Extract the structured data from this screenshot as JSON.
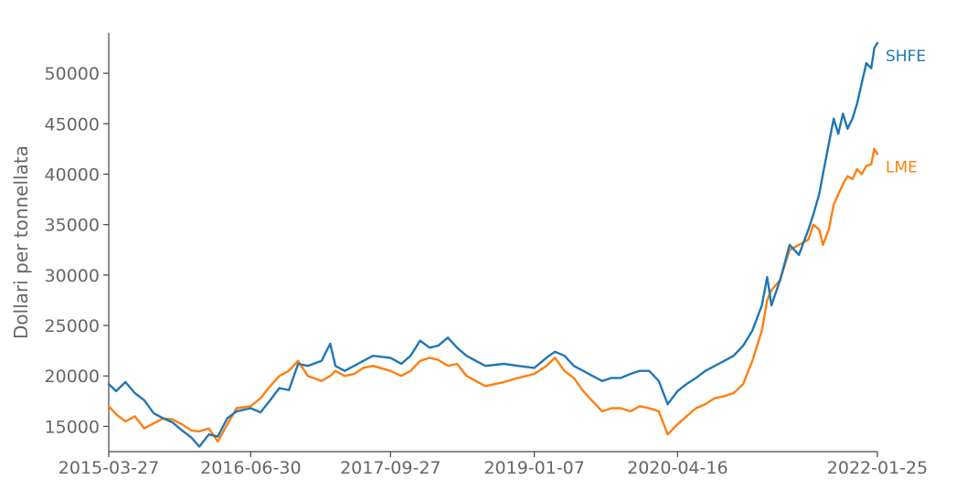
{
  "chart_data": {
    "type": "line",
    "title": "",
    "xlabel": "",
    "ylabel": "Dollari per tonnellata",
    "x_ticks": [
      "2015-03-27",
      "2016-06-30",
      "2017-09-27",
      "2019-01-07",
      "2020-04-16",
      "2022-01-25"
    ],
    "x_range": [
      "2015-03-27",
      "2022-01-25"
    ],
    "y_ticks": [
      15000,
      20000,
      25000,
      30000,
      35000,
      40000,
      45000,
      50000
    ],
    "ylim": [
      12500,
      54000
    ],
    "grid": false,
    "legend": "direct-labels-right",
    "series": [
      {
        "name": "SHFE",
        "color": "#1f77b4",
        "points": [
          [
            "2015-03-27",
            19200
          ],
          [
            "2015-04-20",
            18500
          ],
          [
            "2015-05-20",
            19400
          ],
          [
            "2015-06-20",
            18300
          ],
          [
            "2015-07-20",
            17600
          ],
          [
            "2015-08-20",
            16300
          ],
          [
            "2015-09-20",
            15800
          ],
          [
            "2015-10-20",
            15400
          ],
          [
            "2015-11-20",
            14600
          ],
          [
            "2015-12-20",
            13900
          ],
          [
            "2016-01-15",
            13000
          ],
          [
            "2016-02-15",
            14200
          ],
          [
            "2016-03-15",
            14000
          ],
          [
            "2016-04-15",
            15800
          ],
          [
            "2016-05-15",
            16500
          ],
          [
            "2016-06-30",
            16800
          ],
          [
            "2016-08-01",
            16400
          ],
          [
            "2016-09-01",
            17600
          ],
          [
            "2016-10-01",
            18800
          ],
          [
            "2016-11-01",
            18600
          ],
          [
            "2016-12-01",
            21200
          ],
          [
            "2017-01-01",
            21000
          ],
          [
            "2017-02-15",
            21500
          ],
          [
            "2017-03-15",
            23200
          ],
          [
            "2017-04-01",
            21000
          ],
          [
            "2017-05-01",
            20500
          ],
          [
            "2017-06-01",
            21000
          ],
          [
            "2017-07-01",
            21500
          ],
          [
            "2017-08-01",
            22000
          ],
          [
            "2017-09-27",
            21800
          ],
          [
            "2017-11-01",
            21200
          ],
          [
            "2017-12-01",
            22000
          ],
          [
            "2018-01-01",
            23500
          ],
          [
            "2018-02-01",
            22800
          ],
          [
            "2018-03-01",
            23000
          ],
          [
            "2018-04-01",
            23800
          ],
          [
            "2018-05-01",
            22800
          ],
          [
            "2018-06-01",
            22000
          ],
          [
            "2018-07-01",
            21500
          ],
          [
            "2018-08-01",
            21000
          ],
          [
            "2018-10-01",
            21200
          ],
          [
            "2018-11-15",
            21000
          ],
          [
            "2019-01-07",
            20800
          ],
          [
            "2019-02-15",
            21800
          ],
          [
            "2019-03-15",
            22400
          ],
          [
            "2019-04-15",
            22000
          ],
          [
            "2019-05-15",
            21000
          ],
          [
            "2019-06-15",
            20500
          ],
          [
            "2019-07-15",
            20000
          ],
          [
            "2019-08-15",
            19500
          ],
          [
            "2019-09-15",
            19800
          ],
          [
            "2019-10-15",
            19800
          ],
          [
            "2019-11-15",
            20200
          ],
          [
            "2019-12-15",
            20500
          ],
          [
            "2020-01-15",
            20500
          ],
          [
            "2020-02-15",
            19500
          ],
          [
            "2020-03-15",
            17200
          ],
          [
            "2020-04-16",
            18500
          ],
          [
            "2020-05-15",
            19200
          ],
          [
            "2020-06-15",
            19800
          ],
          [
            "2020-07-15",
            20500
          ],
          [
            "2020-08-15",
            21000
          ],
          [
            "2020-09-15",
            21500
          ],
          [
            "2020-10-15",
            22000
          ],
          [
            "2020-11-15",
            23000
          ],
          [
            "2020-12-15",
            24500
          ],
          [
            "2021-01-15",
            27000
          ],
          [
            "2021-02-01",
            29800
          ],
          [
            "2021-02-15",
            27000
          ],
          [
            "2021-03-15",
            29500
          ],
          [
            "2021-04-15",
            33000
          ],
          [
            "2021-05-15",
            32000
          ],
          [
            "2021-06-15",
            34500
          ],
          [
            "2021-07-01",
            36000
          ],
          [
            "2021-07-20",
            38000
          ],
          [
            "2021-08-01",
            40000
          ],
          [
            "2021-08-20",
            43000
          ],
          [
            "2021-09-05",
            45500
          ],
          [
            "2021-09-20",
            44000
          ],
          [
            "2021-10-05",
            46000
          ],
          [
            "2021-10-20",
            44500
          ],
          [
            "2021-11-05",
            45500
          ],
          [
            "2021-11-20",
            47000
          ],
          [
            "2021-12-05",
            49000
          ],
          [
            "2021-12-20",
            51000
          ],
          [
            "2022-01-05",
            50500
          ],
          [
            "2022-01-15",
            52500
          ],
          [
            "2022-01-25",
            53000
          ]
        ]
      },
      {
        "name": "LME",
        "color": "#ff7f0e",
        "points": [
          [
            "2015-03-27",
            17000
          ],
          [
            "2015-04-20",
            16200
          ],
          [
            "2015-05-20",
            15500
          ],
          [
            "2015-06-20",
            16000
          ],
          [
            "2015-07-20",
            14800
          ],
          [
            "2015-08-20",
            15300
          ],
          [
            "2015-09-20",
            15800
          ],
          [
            "2015-10-20",
            15700
          ],
          [
            "2015-11-20",
            15200
          ],
          [
            "2015-12-20",
            14600
          ],
          [
            "2016-01-15",
            14500
          ],
          [
            "2016-02-15",
            14800
          ],
          [
            "2016-03-15",
            13500
          ],
          [
            "2016-04-15",
            15200
          ],
          [
            "2016-05-15",
            16800
          ],
          [
            "2016-06-30",
            17000
          ],
          [
            "2016-08-01",
            17800
          ],
          [
            "2016-09-01",
            19000
          ],
          [
            "2016-10-01",
            20000
          ],
          [
            "2016-11-01",
            20500
          ],
          [
            "2016-12-01",
            21500
          ],
          [
            "2017-01-01",
            20000
          ],
          [
            "2017-02-15",
            19500
          ],
          [
            "2017-03-15",
            20000
          ],
          [
            "2017-04-01",
            20500
          ],
          [
            "2017-05-01",
            20000
          ],
          [
            "2017-06-01",
            20200
          ],
          [
            "2017-07-01",
            20800
          ],
          [
            "2017-08-01",
            21000
          ],
          [
            "2017-09-27",
            20500
          ],
          [
            "2017-11-01",
            20000
          ],
          [
            "2017-12-01",
            20500
          ],
          [
            "2018-01-01",
            21500
          ],
          [
            "2018-02-01",
            21800
          ],
          [
            "2018-03-01",
            21600
          ],
          [
            "2018-04-01",
            21000
          ],
          [
            "2018-05-01",
            21200
          ],
          [
            "2018-06-01",
            20000
          ],
          [
            "2018-07-01",
            19500
          ],
          [
            "2018-08-01",
            19000
          ],
          [
            "2018-10-01",
            19400
          ],
          [
            "2018-11-15",
            19800
          ],
          [
            "2019-01-07",
            20200
          ],
          [
            "2019-02-15",
            21000
          ],
          [
            "2019-03-15",
            21800
          ],
          [
            "2019-04-15",
            20500
          ],
          [
            "2019-05-15",
            19800
          ],
          [
            "2019-06-15",
            18500
          ],
          [
            "2019-07-15",
            17500
          ],
          [
            "2019-08-15",
            16500
          ],
          [
            "2019-09-15",
            16800
          ],
          [
            "2019-10-15",
            16800
          ],
          [
            "2019-11-15",
            16500
          ],
          [
            "2019-12-15",
            17000
          ],
          [
            "2020-01-15",
            16800
          ],
          [
            "2020-02-15",
            16500
          ],
          [
            "2020-03-15",
            14200
          ],
          [
            "2020-04-16",
            15200
          ],
          [
            "2020-05-15",
            16000
          ],
          [
            "2020-06-15",
            16800
          ],
          [
            "2020-07-15",
            17200
          ],
          [
            "2020-08-15",
            17800
          ],
          [
            "2020-09-15",
            18000
          ],
          [
            "2020-10-15",
            18300
          ],
          [
            "2020-11-15",
            19200
          ],
          [
            "2020-12-15",
            21500
          ],
          [
            "2021-01-15",
            24500
          ],
          [
            "2021-02-01",
            27500
          ],
          [
            "2021-02-15",
            28500
          ],
          [
            "2021-03-15",
            29500
          ],
          [
            "2021-04-15",
            32500
          ],
          [
            "2021-05-15",
            33000
          ],
          [
            "2021-06-15",
            33500
          ],
          [
            "2021-07-01",
            35000
          ],
          [
            "2021-07-20",
            34500
          ],
          [
            "2021-08-01",
            33000
          ],
          [
            "2021-08-20",
            34500
          ],
          [
            "2021-09-05",
            37000
          ],
          [
            "2021-09-20",
            38000
          ],
          [
            "2021-10-05",
            39000
          ],
          [
            "2021-10-20",
            39800
          ],
          [
            "2021-11-05",
            39500
          ],
          [
            "2021-11-20",
            40500
          ],
          [
            "2021-12-05",
            40000
          ],
          [
            "2021-12-20",
            40800
          ],
          [
            "2022-01-05",
            41000
          ],
          [
            "2022-01-15",
            42500
          ],
          [
            "2022-01-25",
            42000
          ]
        ]
      }
    ]
  }
}
